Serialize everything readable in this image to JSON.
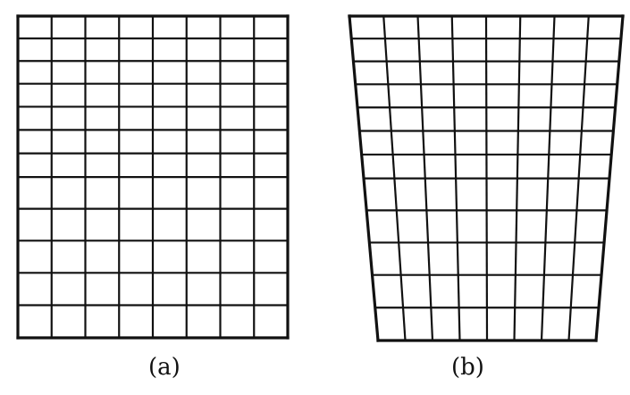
{
  "panels": [
    {
      "id": "a",
      "label": "(a)",
      "shape": "rectangle",
      "columns": 8,
      "rows": 12
    },
    {
      "id": "b",
      "label": "(b)",
      "shape": "trapezoid",
      "columns": 8,
      "rows": 12
    }
  ],
  "colors": {
    "line": "#111111",
    "background": "#ffffff"
  }
}
